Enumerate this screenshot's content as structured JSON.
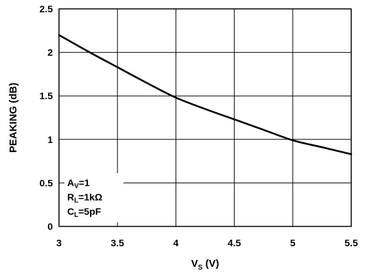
{
  "chart_data": {
    "type": "line",
    "xlabel_main": "V",
    "xlabel_sub": "S",
    "xlabel_unit": " (V)",
    "ylabel": "PEAKING (dB)",
    "xlim": [
      3,
      5.5
    ],
    "ylim": [
      0,
      2.5
    ],
    "x_ticks": [
      "3",
      "3.5",
      "4",
      "4.5",
      "5",
      "5.5"
    ],
    "y_ticks": [
      "0",
      "0.5",
      "1",
      "1.5",
      "2",
      "2.5"
    ],
    "grid": true,
    "annotation": [
      {
        "main": "A",
        "sub": "V",
        "rest": "=1"
      },
      {
        "main": "R",
        "sub": "L",
        "rest": "=1kΩ"
      },
      {
        "main": "C",
        "sub": "L",
        "rest": "=5pF"
      }
    ],
    "series": [
      {
        "x": [
          3.0,
          3.25,
          3.5,
          3.75,
          4.0,
          4.25,
          4.5,
          4.75,
          5.0,
          5.25,
          5.5
        ],
        "y": [
          2.2,
          2.01,
          1.83,
          1.65,
          1.48,
          1.35,
          1.23,
          1.11,
          0.99,
          0.91,
          0.83
        ]
      }
    ]
  }
}
